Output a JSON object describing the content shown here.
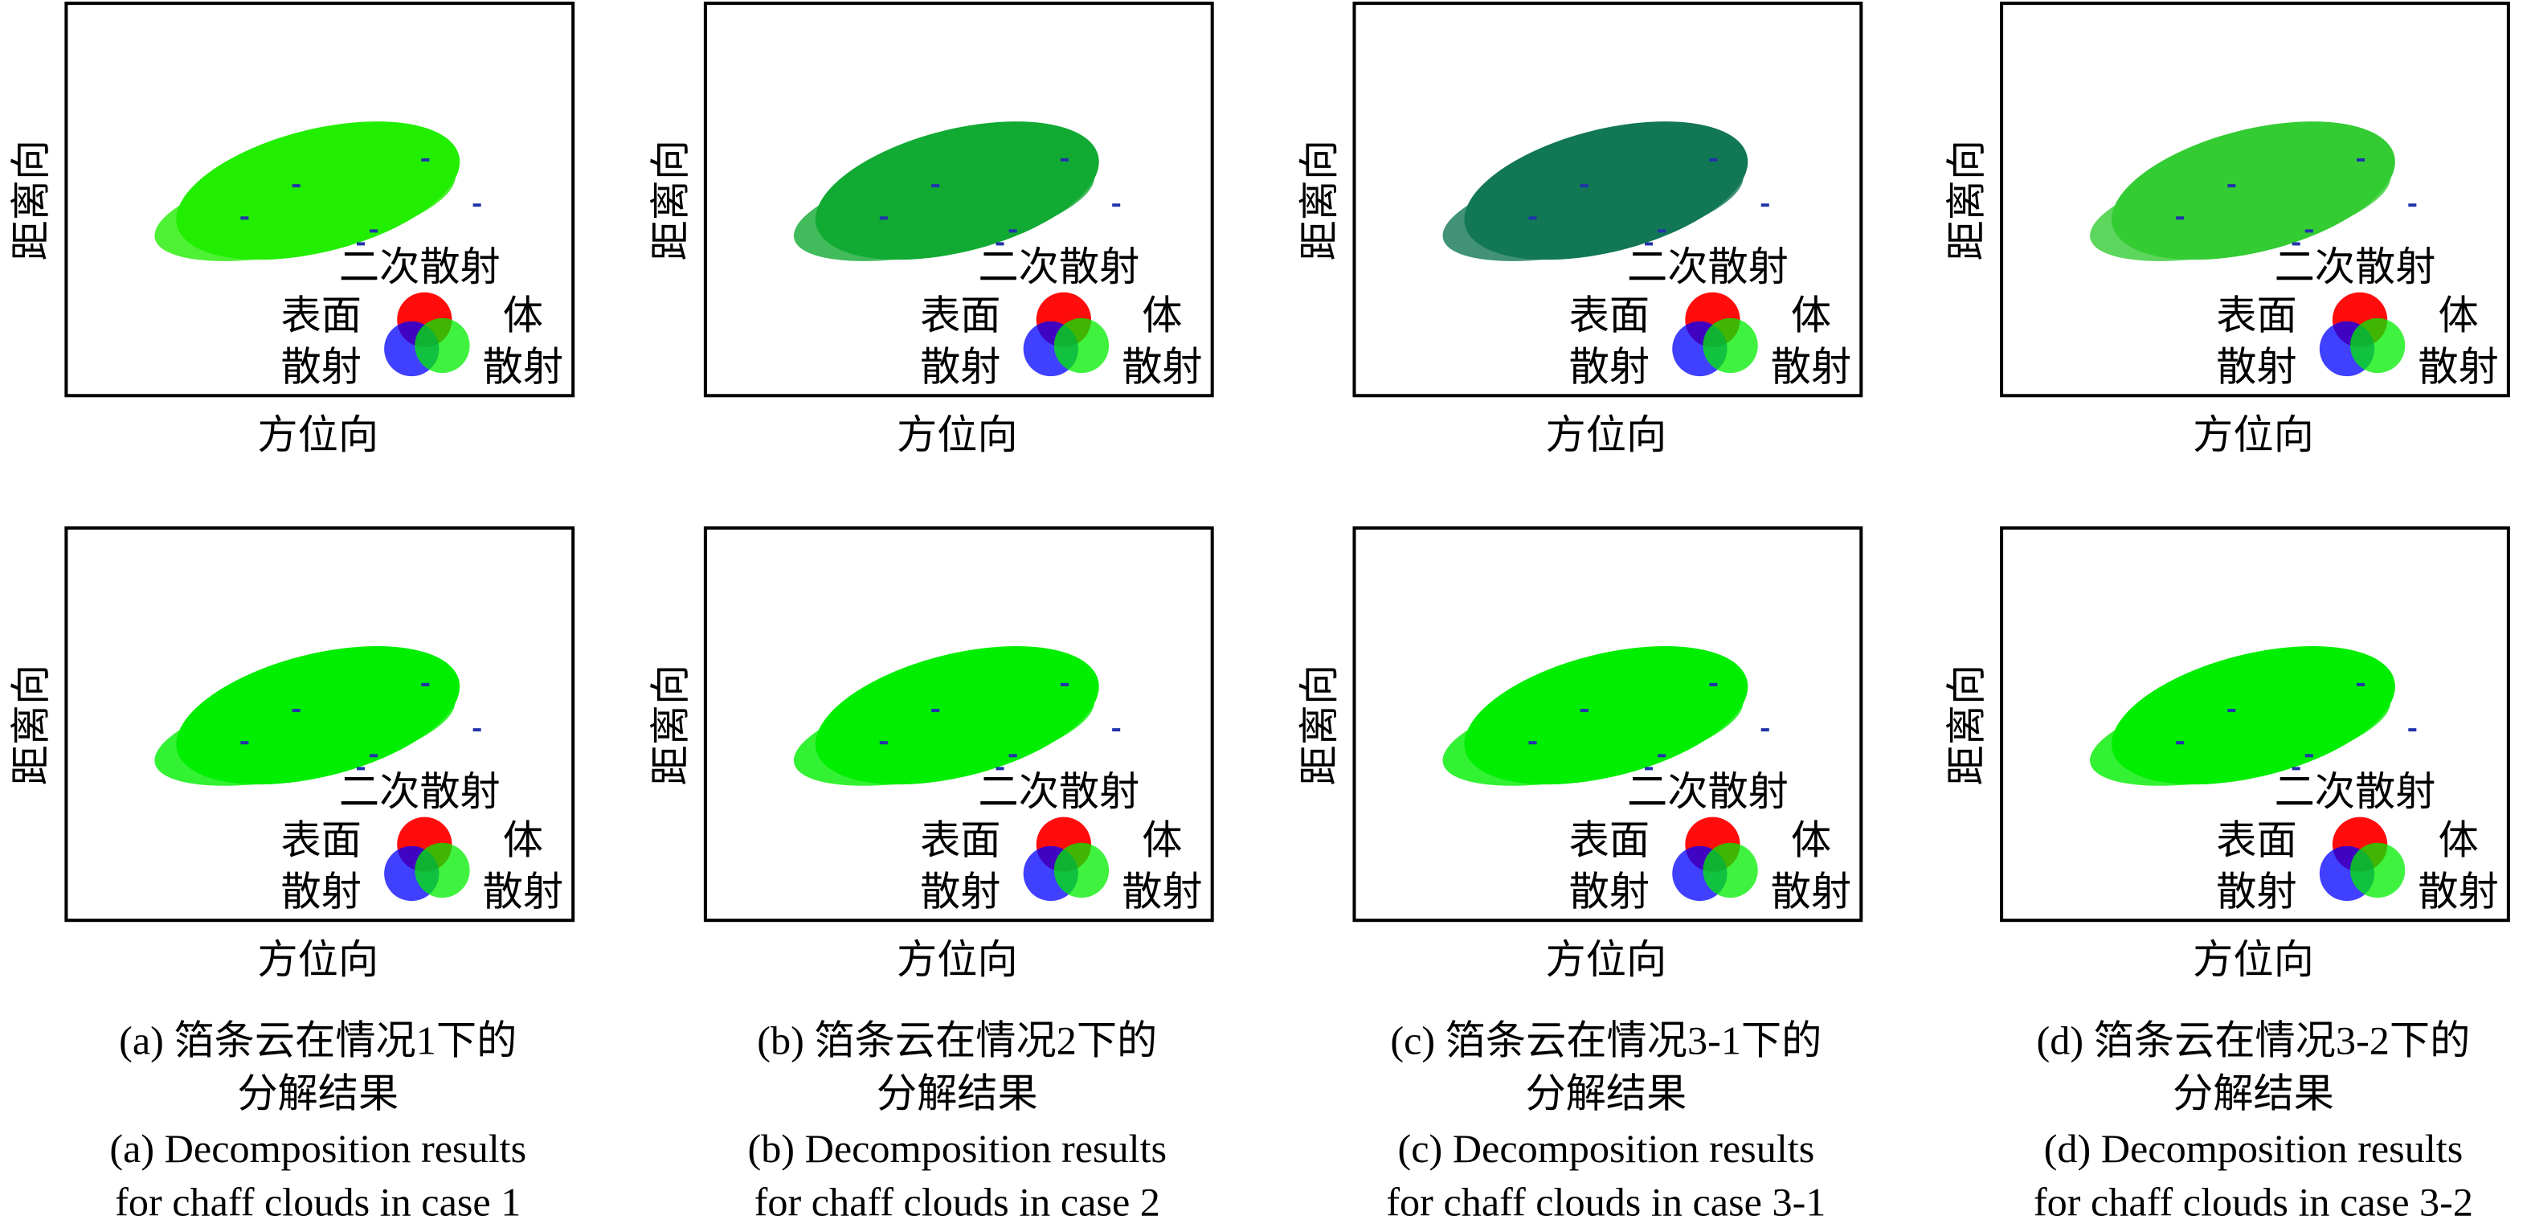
{
  "axis_labels": {
    "y": "距离向",
    "x": "方位向"
  },
  "legend": {
    "top": "二次散射",
    "left": [
      "表面",
      "散射"
    ],
    "right": [
      "体",
      "散射"
    ]
  },
  "columns": [
    {
      "caption_zh": [
        "(a) 箔条云在情况1下的",
        "分解结果"
      ],
      "caption_en": [
        "(a) Decomposition results",
        "for chaff clouds in case 1"
      ]
    },
    {
      "caption_zh": [
        "(b) 箔条云在情况2下的",
        "分解结果"
      ],
      "caption_en": [
        "(b) Decomposition results",
        "for chaff clouds in case 2"
      ]
    },
    {
      "caption_zh": [
        "(c) 箔条云在情况3-1下的",
        "分解结果"
      ],
      "caption_en": [
        "(c) Decomposition results",
        "for chaff clouds in case 3-1"
      ]
    },
    {
      "caption_zh": [
        "(d) 箔条云在情况3-2下的",
        "分解结果"
      ],
      "caption_en": [
        "(d) Decomposition results",
        "for chaff clouds in case 3-2"
      ]
    }
  ]
}
